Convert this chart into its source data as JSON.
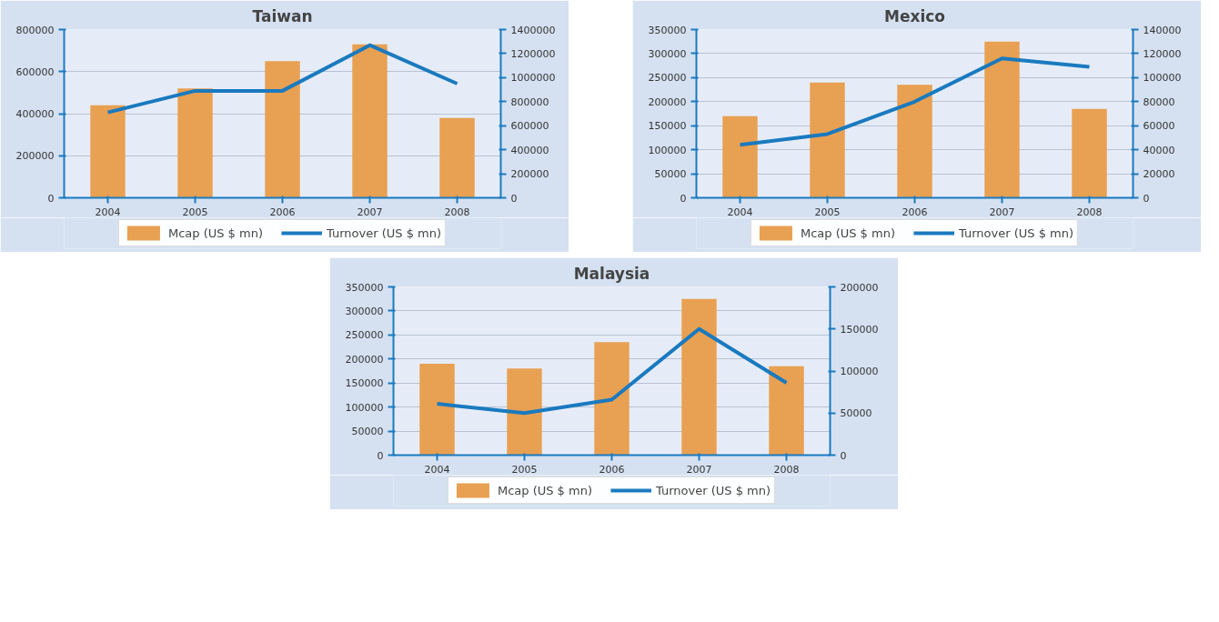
{
  "chart_data": [
    {
      "type": "bar",
      "title": "Taiwan",
      "categories": [
        "2004",
        "2005",
        "2006",
        "2007",
        "2008"
      ],
      "series": [
        {
          "name": "Mcap (US $ mn)",
          "type": "bar",
          "color": "#e8a052",
          "values": [
            440000,
            520000,
            650000,
            730000,
            380000
          ]
        },
        {
          "name": "Turnover (US $ mn)",
          "type": "line",
          "axis": "y2",
          "color": "#1a7abf",
          "values": [
            710000,
            890000,
            890000,
            1270000,
            950000
          ]
        }
      ],
      "ylim": [
        0,
        800000
      ],
      "yticks": [
        0,
        200000,
        400000,
        600000,
        800000
      ],
      "y2lim": [
        0,
        1400000
      ],
      "y2ticks": [
        0,
        200000,
        400000,
        600000,
        800000,
        1000000,
        1200000,
        1400000
      ],
      "grid": "y",
      "legend": "bottom",
      "marker": "none",
      "line_style": "solid"
    },
    {
      "type": "bar",
      "title": "Mexico",
      "categories": [
        "2004",
        "2005",
        "2006",
        "2007",
        "2008"
      ],
      "series": [
        {
          "name": "Mcap (US $ mn)",
          "type": "bar",
          "color": "#e8a052",
          "values": [
            170000,
            240000,
            235000,
            325000,
            185000
          ]
        },
        {
          "name": "Turnover (US $ mn)",
          "type": "line",
          "axis": "y2",
          "color": "#1a7abf",
          "values": [
            44000,
            53000,
            80000,
            116000,
            109000
          ]
        }
      ],
      "ylim": [
        0,
        350000
      ],
      "yticks": [
        0,
        50000,
        100000,
        150000,
        200000,
        250000,
        300000,
        350000
      ],
      "y2lim": [
        0,
        140000
      ],
      "y2ticks": [
        0,
        20000,
        40000,
        60000,
        80000,
        100000,
        120000,
        140000
      ],
      "grid": "y",
      "legend": "bottom",
      "marker": "none",
      "line_style": "solid"
    },
    {
      "type": "bar",
      "title": "Malaysia",
      "categories": [
        "2004",
        "2005",
        "2006",
        "2007",
        "2008"
      ],
      "series": [
        {
          "name": "Mcap (US $ mn)",
          "type": "bar",
          "color": "#e8a052",
          "values": [
            190000,
            180000,
            235000,
            325000,
            185000
          ]
        },
        {
          "name": "Turnover (US $ mn)",
          "type": "line",
          "axis": "y2",
          "color": "#1a7abf",
          "values": [
            61000,
            50000,
            66000,
            150000,
            86000
          ]
        }
      ],
      "ylim": [
        0,
        350000
      ],
      "yticks": [
        0,
        50000,
        100000,
        150000,
        200000,
        250000,
        300000,
        350000
      ],
      "y2lim": [
        0,
        200000
      ],
      "y2ticks": [
        0,
        50000,
        100000,
        150000,
        200000
      ],
      "grid": "y",
      "legend": "bottom",
      "marker": "none",
      "line_style": "solid"
    }
  ]
}
